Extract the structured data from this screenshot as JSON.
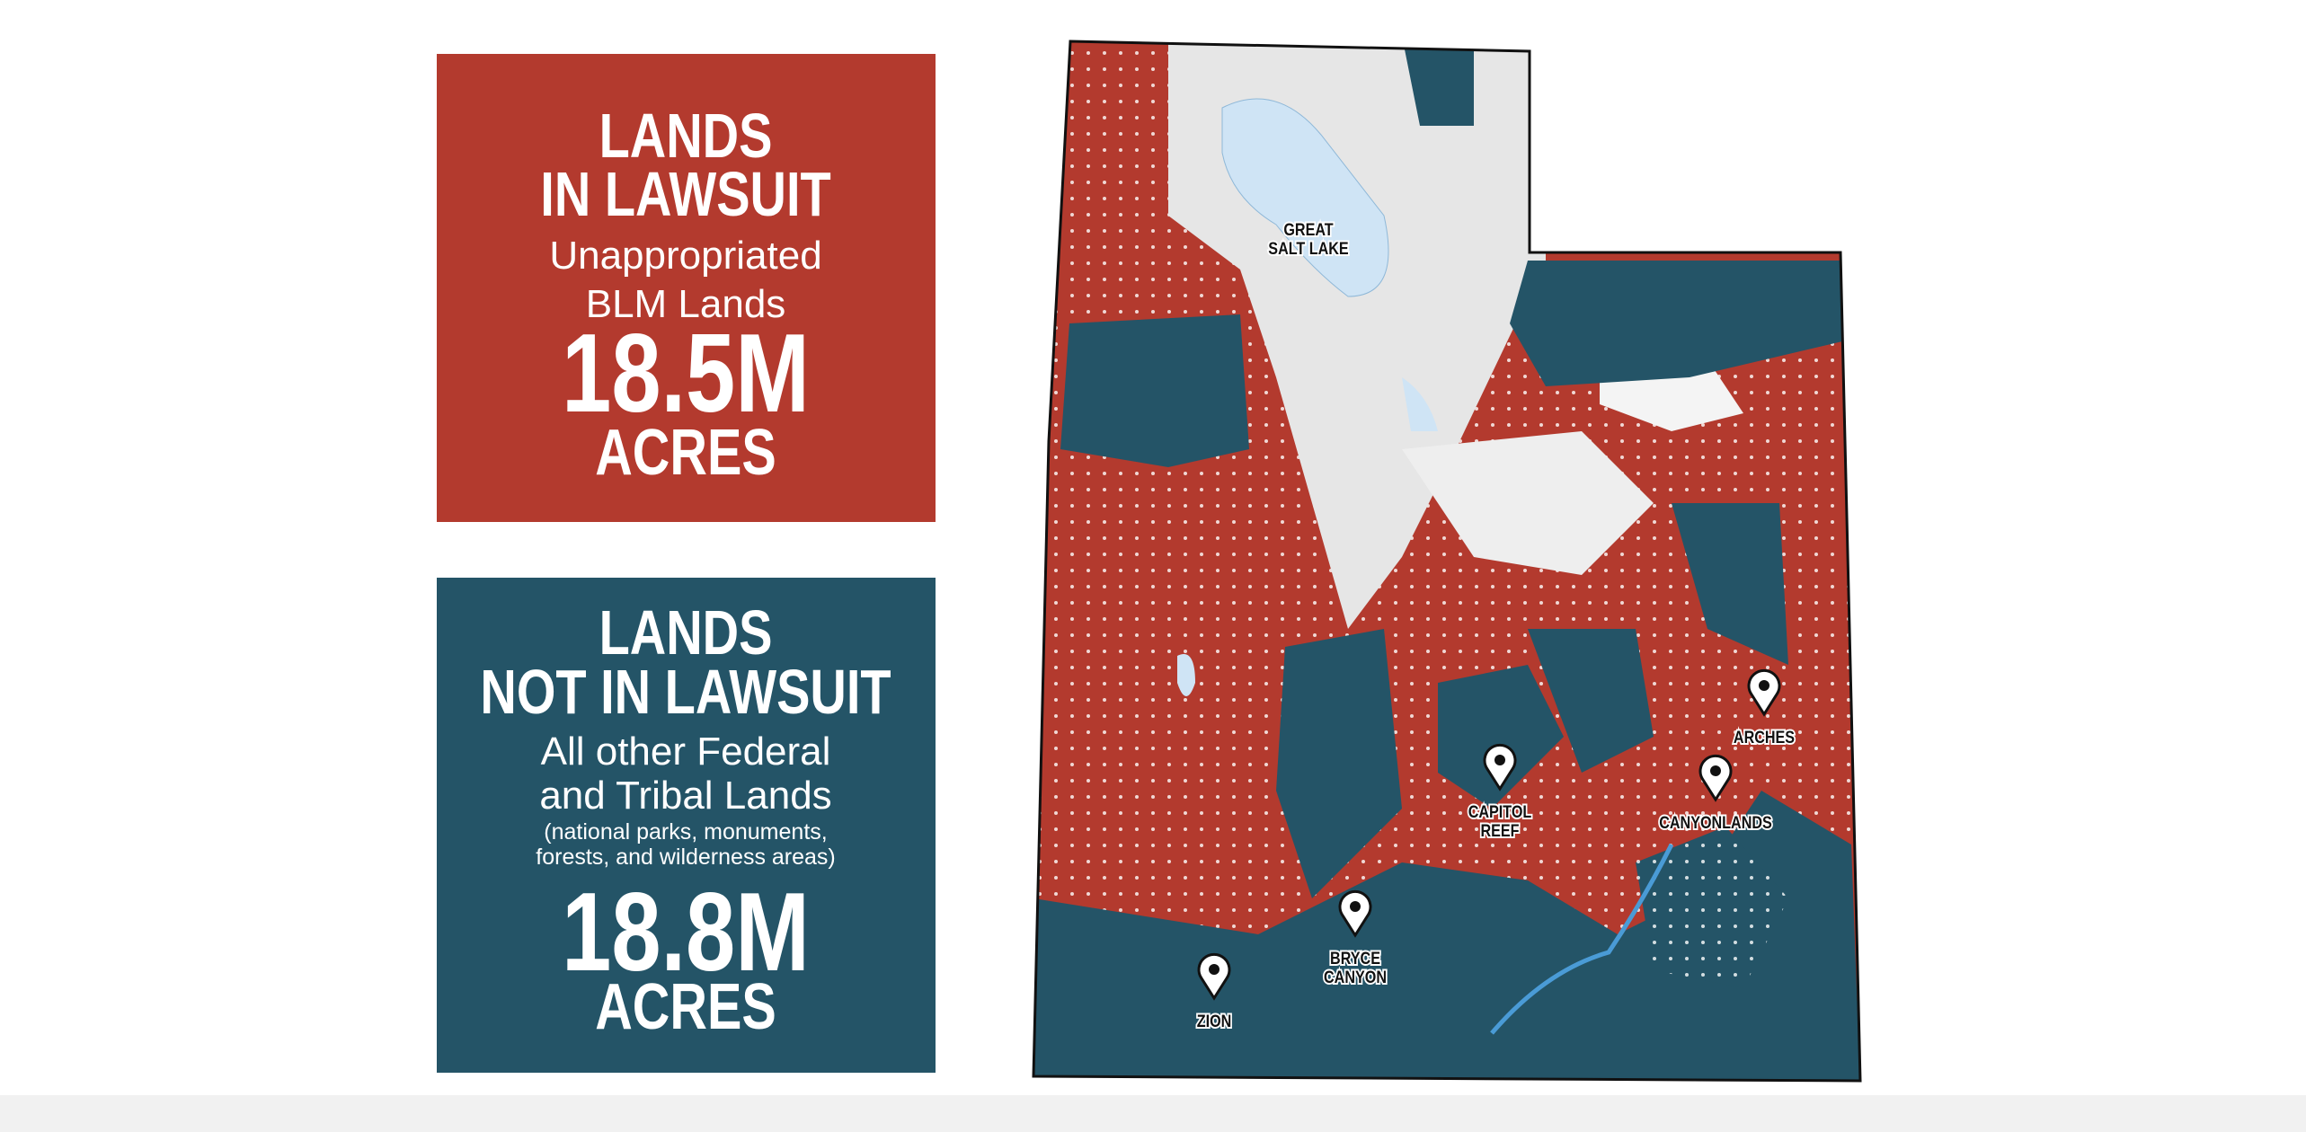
{
  "panels": [
    {
      "title_lines": [
        "LANDS",
        "IN LAWSUIT"
      ],
      "subtitle_lines": [
        "Unappropriated",
        "BLM Lands"
      ],
      "note_lines": [],
      "amount": "18.5M",
      "unit": "ACRES",
      "color": "#b33a2e"
    },
    {
      "title_lines": [
        "LANDS",
        "NOT IN LAWSUIT"
      ],
      "subtitle_lines": [
        "All other Federal",
        "and Tribal Lands"
      ],
      "note_lines": [
        "(national parks, monuments,",
        "forests, and wilderness areas)"
      ],
      "amount": "18.8M",
      "unit": "ACRES",
      "color": "#245467"
    }
  ],
  "map": {
    "labels": [
      {
        "lines": [
          "GREAT",
          "SALT LAKE"
        ],
        "pin": false
      },
      {
        "lines": [
          "ARCHES"
        ],
        "pin": true
      },
      {
        "lines": [
          "CAPITOL",
          "REEF"
        ],
        "pin": true
      },
      {
        "lines": [
          "CANYONLANDS"
        ],
        "pin": true
      },
      {
        "lines": [
          "BRYCE",
          "CANYON"
        ],
        "pin": true
      },
      {
        "lines": [
          "ZION"
        ],
        "pin": true
      }
    ]
  }
}
